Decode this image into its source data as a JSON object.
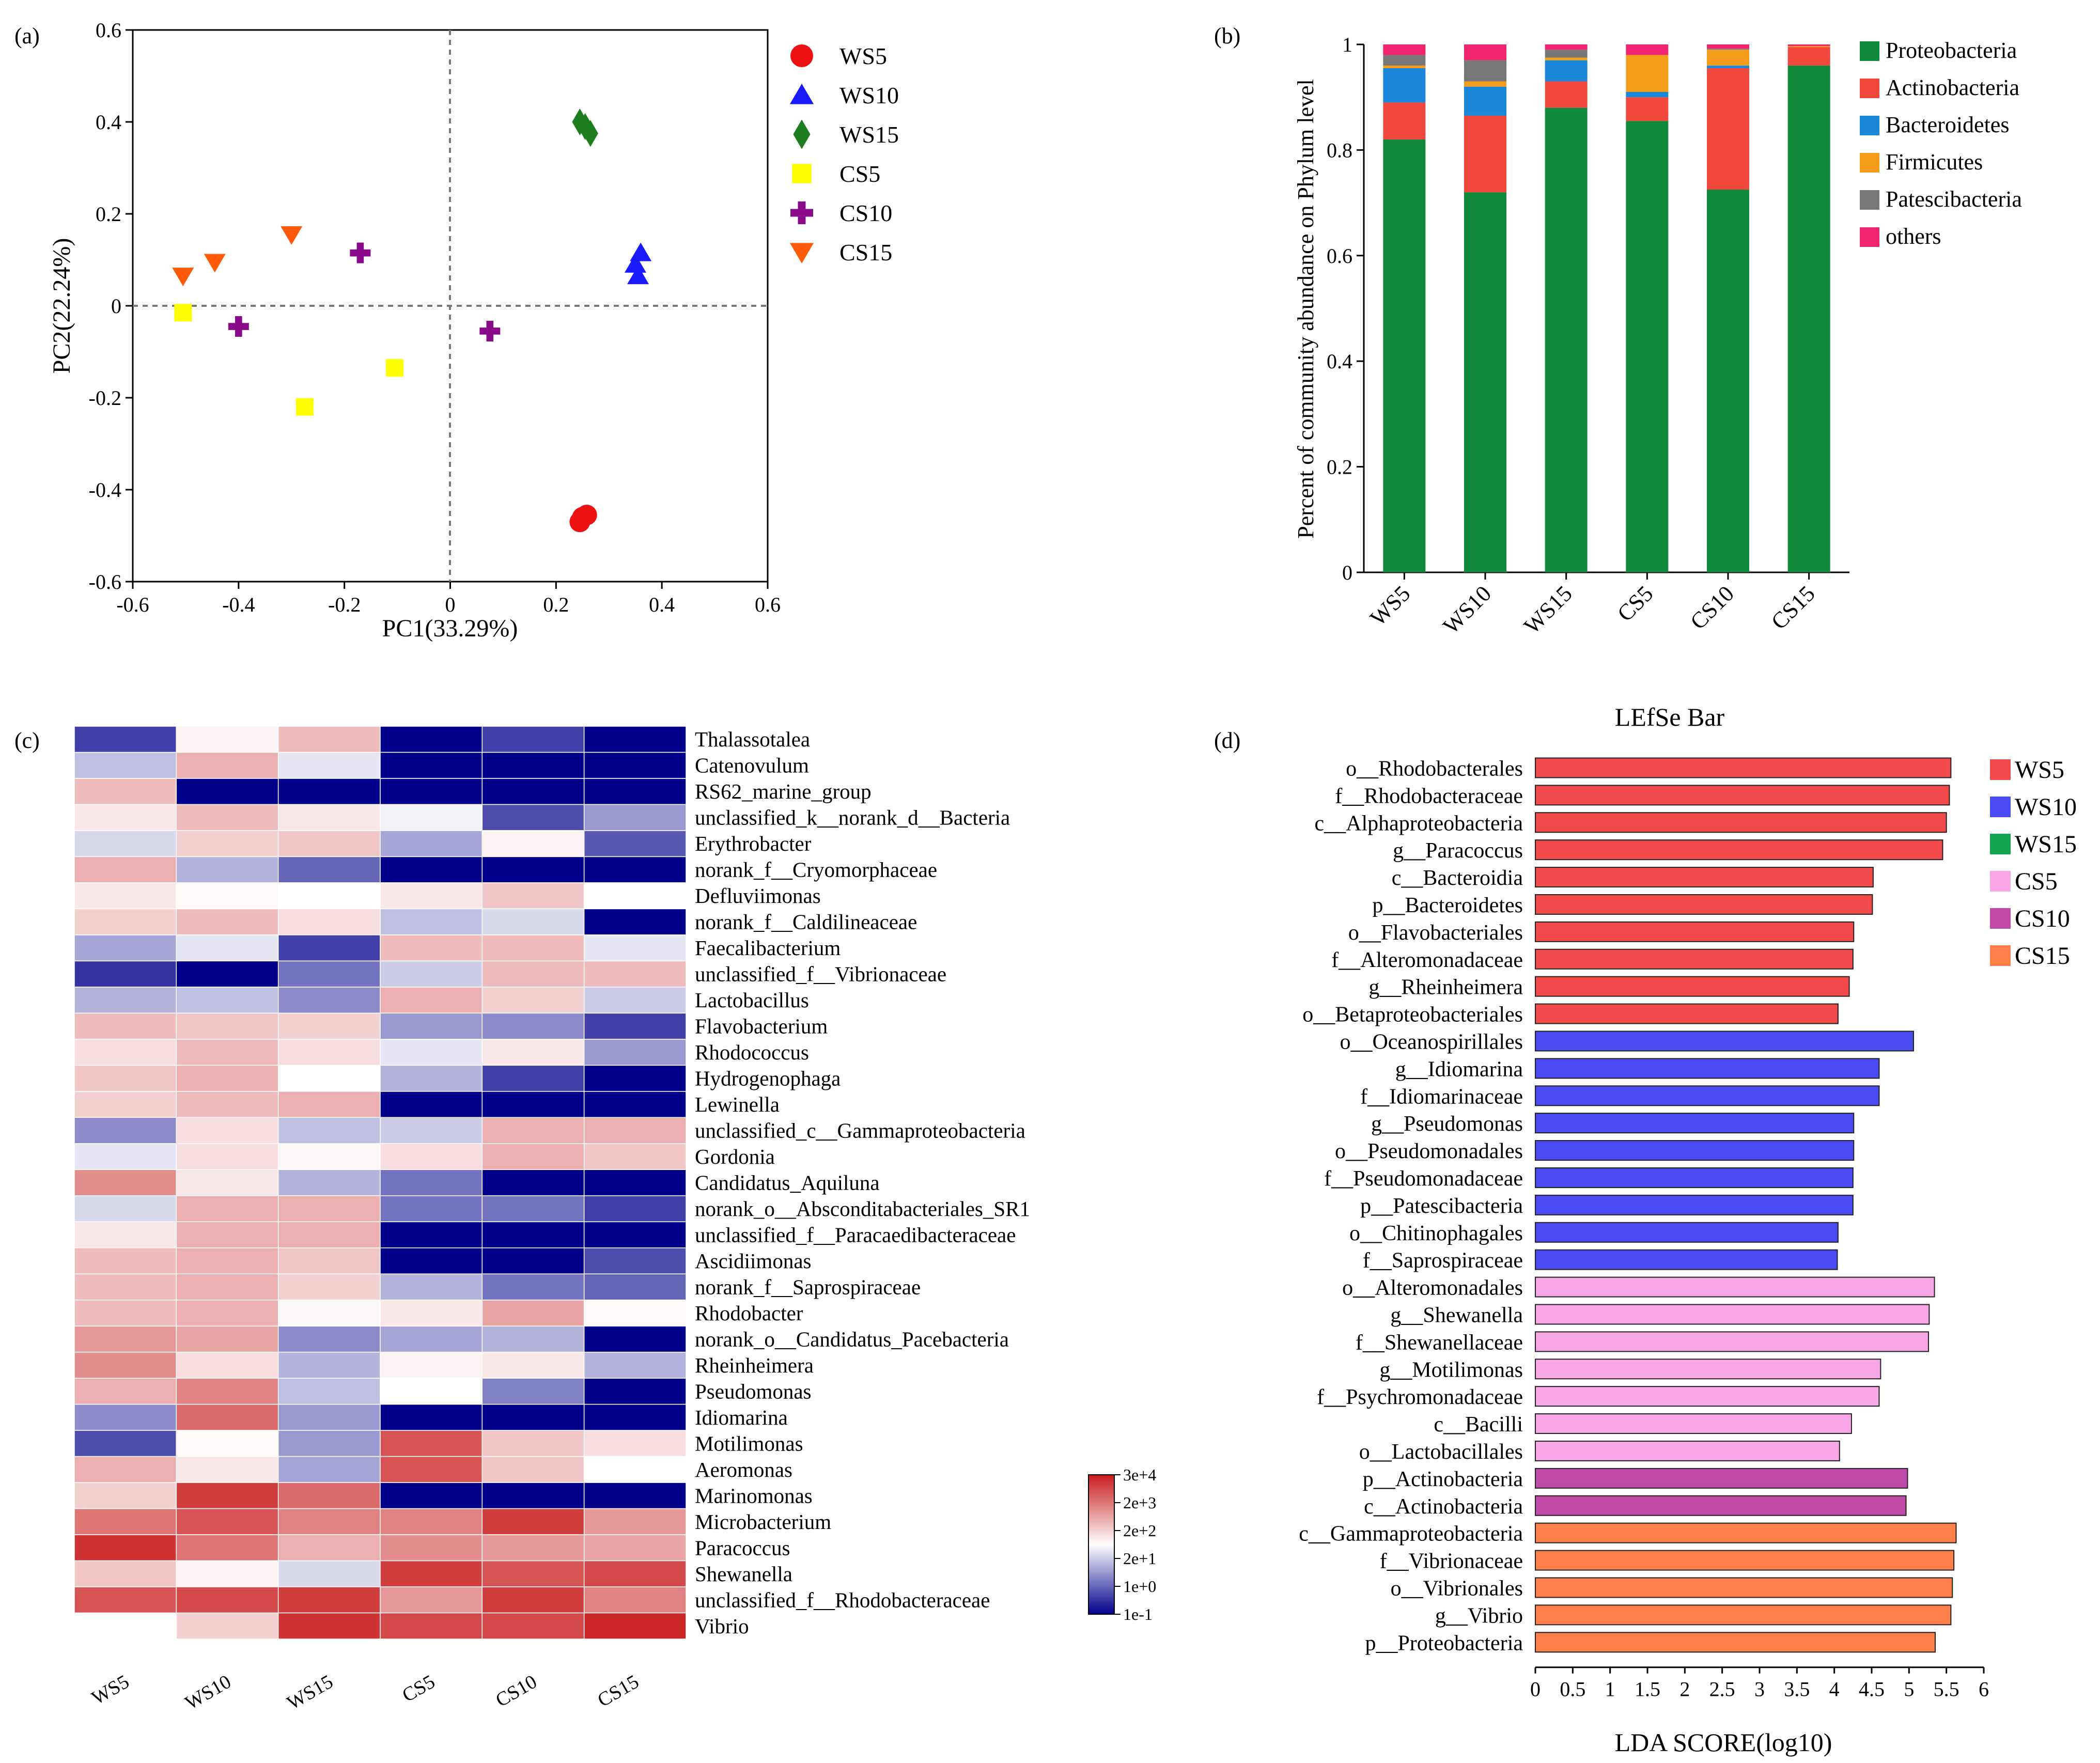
{
  "panel_labels": {
    "a": "(a)",
    "b": "(b)",
    "c": "(c)",
    "d": "(d)"
  },
  "colors": {
    "WS5": "#ee1111",
    "WS10": "#1a1aff",
    "WS15": "#1e7d1e",
    "CS5": "#ffff00",
    "CS10": "#8b0a8b",
    "CS15": "#ff5a0a",
    "lefse_WS5": "#f24a4a",
    "lefse_WS10": "#4a4af2",
    "lefse_WS15": "#16a350",
    "lefse_CS5": "#f7a6e6",
    "lefse_CS10": "#c04aa8",
    "lefse_CS15": "#ff7f4a",
    "heat_low": "#00008b",
    "heat_mid": "#ffffff",
    "heat_high": "#c81b1b"
  },
  "chart_data": [
    {
      "id": "pca",
      "type": "scatter",
      "xlabel": "PC1(33.29%)",
      "ylabel": "PC2(22.24%)",
      "xlim": [
        -0.6,
        0.6
      ],
      "ylim": [
        -0.6,
        0.6
      ],
      "xticks": [
        "-0.6",
        "-0.4",
        "-0.2",
        "0",
        "0.2",
        "0.4",
        "0.6"
      ],
      "yticks": [
        "-0.6",
        "-0.4",
        "-0.2",
        "0",
        "0.2",
        "0.4",
        "0.6"
      ],
      "reference_lines": "dashed at x=0 and y=0",
      "series": [
        {
          "name": "WS5",
          "marker": "circle",
          "points": [
            [
              0.245,
              -0.47
            ],
            [
              0.25,
              -0.46
            ],
            [
              0.258,
              -0.455
            ]
          ]
        },
        {
          "name": "WS10",
          "marker": "triangle-up",
          "points": [
            [
              0.36,
              0.115
            ],
            [
              0.35,
              0.09
            ],
            [
              0.355,
              0.065
            ]
          ]
        },
        {
          "name": "WS15",
          "marker": "diamond",
          "points": [
            [
              0.245,
              0.4
            ],
            [
              0.255,
              0.39
            ],
            [
              0.265,
              0.375
            ]
          ]
        },
        {
          "name": "CS5",
          "marker": "square",
          "points": [
            [
              -0.505,
              -0.015
            ],
            [
              -0.275,
              -0.22
            ],
            [
              -0.105,
              -0.135
            ]
          ]
        },
        {
          "name": "CS10",
          "marker": "plus",
          "points": [
            [
              -0.4,
              -0.045
            ],
            [
              -0.17,
              0.115
            ],
            [
              0.075,
              -0.055
            ]
          ]
        },
        {
          "name": "CS15",
          "marker": "triangle-down",
          "points": [
            [
              -0.505,
              0.065
            ],
            [
              -0.445,
              0.095
            ],
            [
              -0.3,
              0.155
            ]
          ]
        }
      ],
      "legend": [
        "WS5",
        "WS10",
        "WS15",
        "CS5",
        "CS10",
        "CS15"
      ]
    },
    {
      "id": "phylum",
      "type": "bar",
      "stacked": true,
      "ylabel": "Percent of community abundance on Phylum level",
      "ylim": [
        0,
        1
      ],
      "yticks": [
        "0",
        "0.2",
        "0.4",
        "0.6",
        "0.8",
        "1"
      ],
      "categories": [
        "WS5",
        "WS10",
        "WS15",
        "CS5",
        "CS10",
        "CS15"
      ],
      "series": [
        {
          "name": "Proteobacteria",
          "color": "#0f8a3c",
          "values": [
            0.82,
            0.72,
            0.88,
            0.855,
            0.725,
            0.96
          ]
        },
        {
          "name": "Actinobacteria",
          "color": "#f0483c",
          "values": [
            0.07,
            0.145,
            0.05,
            0.045,
            0.23,
            0.035
          ]
        },
        {
          "name": "Bacteroidetes",
          "color": "#1a87d9",
          "values": [
            0.065,
            0.055,
            0.04,
            0.01,
            0.005,
            0.0
          ]
        },
        {
          "name": "Firmicutes",
          "color": "#f59c1a",
          "values": [
            0.005,
            0.01,
            0.005,
            0.07,
            0.03,
            0.002
          ]
        },
        {
          "name": "Patescibacteria",
          "color": "#777777",
          "values": [
            0.02,
            0.04,
            0.015,
            0.0,
            0.002,
            0.0
          ]
        },
        {
          "name": "others",
          "color": "#f0246f",
          "values": [
            0.02,
            0.03,
            0.01,
            0.02,
            0.008,
            0.003
          ]
        }
      ]
    },
    {
      "id": "heatmap",
      "type": "heatmap",
      "columns": [
        "WS5",
        "WS10",
        "WS15",
        "CS5",
        "CS10",
        "CS15"
      ],
      "rows": [
        "Thalassotalea",
        "Catenovulum",
        "RS62_marine_group",
        "unclassified_k__norank_d__Bacteria",
        "Erythrobacter",
        "norank_f__Cryomorphaceae",
        "Defluviimonas",
        "norank_f__Caldilineaceae",
        "Faecalibacterium",
        "unclassified_f__Vibrionaceae",
        "Lactobacillus",
        "Flavobacterium",
        "Rhodococcus",
        "Hydrogenophaga",
        "Lewinella",
        "unclassified_c__Gammaproteobacteria",
        "Gordonia",
        "Candidatus_Aquiluna",
        "norank_o__Absconditabacteriales_SR1",
        "unclassified_f__Paracaedibacteraceae",
        "Ascidiimonas",
        "norank_f__Saprospiraceae",
        "Rhodobacter",
        "norank_o__Candidatus_Pacebacteria",
        "Rheinheimera",
        "Pseudomonas",
        "Idiomarina",
        "Motilimonas",
        "Aeromonas",
        "Marinomonas",
        "Microbacterium",
        "Paracoccus",
        "Shewanella",
        "unclassified_f__Rhodobacteraceae",
        "Vibrio"
      ],
      "values_scale": "-1 (low, blue) to 1 (high, red)",
      "values": [
        [
          -0.75,
          0.05,
          0.3,
          -1,
          -0.75,
          -1
        ],
        [
          -0.25,
          0.35,
          -0.1,
          -1,
          -1,
          -1
        ],
        [
          0.3,
          -1,
          -1,
          -1,
          -1,
          -1
        ],
        [
          0.1,
          0.3,
          0.1,
          -0.05,
          -0.7,
          -0.4
        ],
        [
          -0.15,
          0.2,
          0.25,
          -0.35,
          0.05,
          -0.65
        ],
        [
          0.35,
          -0.3,
          -0.6,
          -1,
          -1,
          -1
        ],
        [
          0.1,
          0.02,
          0.0,
          0.1,
          0.25,
          0.0
        ],
        [
          0.2,
          0.3,
          0.15,
          -0.25,
          -0.15,
          -1
        ],
        [
          -0.35,
          -0.1,
          -0.75,
          0.3,
          0.3,
          -0.1
        ],
        [
          -0.8,
          -1,
          -0.55,
          -0.2,
          0.3,
          0.3
        ],
        [
          -0.3,
          -0.25,
          -0.45,
          0.35,
          0.2,
          -0.2
        ],
        [
          0.3,
          0.25,
          0.2,
          -0.4,
          -0.45,
          -0.75
        ],
        [
          0.15,
          0.3,
          0.15,
          -0.1,
          0.1,
          -0.4
        ],
        [
          0.25,
          0.35,
          0.0,
          -0.3,
          -0.75,
          -1
        ],
        [
          0.2,
          0.3,
          0.35,
          -1,
          -1,
          -1
        ],
        [
          -0.45,
          0.15,
          -0.25,
          -0.2,
          0.35,
          0.35
        ],
        [
          -0.1,
          0.15,
          0.03,
          0.15,
          0.35,
          0.25
        ],
        [
          0.5,
          0.1,
          -0.3,
          -0.55,
          -1,
          -1
        ],
        [
          -0.15,
          0.35,
          0.35,
          -0.55,
          -0.55,
          -0.75
        ],
        [
          0.1,
          0.35,
          0.35,
          -1,
          -1,
          -1
        ],
        [
          0.3,
          0.35,
          0.25,
          -1,
          -1,
          -0.7
        ],
        [
          0.3,
          0.35,
          0.2,
          -0.3,
          -0.55,
          -0.6
        ],
        [
          0.3,
          0.35,
          0.03,
          0.1,
          0.4,
          0.02
        ],
        [
          0.45,
          0.4,
          -0.45,
          -0.35,
          -0.3,
          -1
        ],
        [
          0.5,
          0.15,
          -0.3,
          0.05,
          0.1,
          -0.3
        ],
        [
          0.35,
          0.55,
          -0.25,
          0.0,
          -0.5,
          -1
        ],
        [
          -0.45,
          0.65,
          -0.4,
          -1,
          -1,
          -1
        ],
        [
          -0.7,
          0.02,
          -0.4,
          0.75,
          0.25,
          0.15
        ],
        [
          0.35,
          0.1,
          -0.35,
          0.75,
          0.25,
          0.0
        ],
        [
          0.2,
          0.85,
          0.65,
          -1,
          -1,
          -1
        ],
        [
          0.6,
          0.75,
          0.55,
          0.55,
          0.85,
          0.45
        ],
        [
          0.9,
          0.6,
          0.35,
          0.5,
          0.45,
          0.4
        ],
        [
          0.25,
          0.05,
          -0.15,
          0.85,
          0.75,
          0.8
        ],
        [
          0.75,
          0.8,
          0.85,
          0.45,
          0.85,
          0.55
        ],
        [
          0.0,
          0.2,
          0.9,
          0.8,
          0.8,
          0.95
        ]
      ],
      "colorbar_ticks": [
        "3e+4",
        "2e+3",
        "2e+2",
        "2e+1",
        "1e+0",
        "1e-1"
      ]
    },
    {
      "id": "lefse",
      "type": "bar",
      "orientation": "horizontal",
      "title": "LEfSe Bar",
      "xlabel": "LDA SCORE(log10)",
      "xlim": [
        0,
        6
      ],
      "xticks": [
        "0",
        "0.5",
        "1",
        "1.5",
        "2",
        "2.5",
        "3",
        "3.5",
        "4",
        "4.5",
        "5",
        "5.5",
        "6"
      ],
      "legend": [
        "WS5",
        "WS10",
        "WS15",
        "CS5",
        "CS10",
        "CS15"
      ],
      "categories": [
        "o__Rhodobacterales",
        "f__Rhodobacteraceae",
        "c__Alphaproteobacteria",
        "g__Paracoccus",
        "c__Bacteroidia",
        "p__Bacteroidetes",
        "o__Flavobacteriales",
        "f__Alteromonadaceae",
        "g__Rheinheimera",
        "o__Betaproteobacteriales",
        "o__Oceanospirillales",
        "g__Idiomarina",
        "f__Idiomarinaceae",
        "g__Pseudomonas",
        "o__Pseudomonadales",
        "f__Pseudomonadaceae",
        "p__Patescibacteria",
        "o__Chitinophagales",
        "f__Saprospiraceae",
        "o__Alteromonadales",
        "g__Shewanella",
        "f__Shewanellaceae",
        "g__Motilimonas",
        "f__Psychromonadaceae",
        "c__Bacilli",
        "o__Lactobacillales",
        "p__Actinobacteria",
        "c__Actinobacteria",
        "c__Gammaproteobacteria",
        "f__Vibrionaceae",
        "o__Vibrionales",
        "g__Vibrio",
        "p__Proteobacteria"
      ],
      "groups": [
        "WS5",
        "WS5",
        "WS5",
        "WS5",
        "WS5",
        "WS5",
        "WS5",
        "WS5",
        "WS5",
        "WS5",
        "WS10",
        "WS10",
        "WS10",
        "WS10",
        "WS10",
        "WS10",
        "WS10",
        "WS10",
        "WS10",
        "CS5",
        "CS5",
        "CS5",
        "CS5",
        "CS5",
        "CS5",
        "CS5",
        "CS10",
        "CS10",
        "CS15",
        "CS15",
        "CS15",
        "CS15",
        "CS15"
      ],
      "values": [
        5.56,
        5.54,
        5.5,
        5.45,
        4.52,
        4.51,
        4.26,
        4.25,
        4.2,
        4.05,
        5.06,
        4.6,
        4.6,
        4.26,
        4.26,
        4.25,
        4.25,
        4.05,
        4.04,
        5.34,
        5.27,
        5.26,
        4.62,
        4.6,
        4.23,
        4.07,
        4.98,
        4.96,
        5.63,
        5.6,
        5.58,
        5.56,
        5.35
      ]
    }
  ]
}
